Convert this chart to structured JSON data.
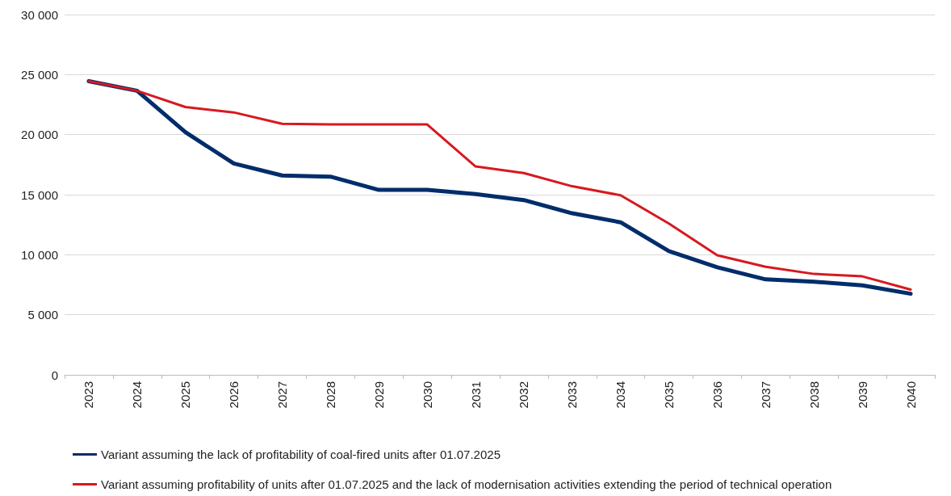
{
  "chart_data": {
    "type": "line",
    "categories": [
      "2023",
      "2024",
      "2025",
      "2026",
      "2027",
      "2028",
      "2029",
      "2030",
      "2031",
      "2032",
      "2033",
      "2034",
      "2035",
      "2036",
      "2037",
      "2038",
      "2039",
      "2040"
    ],
    "series": [
      {
        "name": "Variant assuming the lack of profitability of coal-fired units after 01.07.2025",
        "color": "#002d6a",
        "values": [
          24450,
          23650,
          20200,
          17600,
          16600,
          16500,
          15400,
          15400,
          15050,
          14550,
          13450,
          12700,
          10300,
          8950,
          7950,
          7750,
          7450,
          6750
        ]
      },
      {
        "name": "Variant assuming profitability of units after 01.07.2025 and the lack of modernisation activities extending the period of technical operation",
        "color": "#d71920",
        "values": [
          24450,
          23650,
          22300,
          21850,
          20900,
          20850,
          20850,
          20850,
          17350,
          16800,
          15700,
          14950,
          12600,
          9950,
          9000,
          8400,
          8200,
          7100
        ]
      }
    ],
    "ylim": [
      0,
      30000
    ],
    "yticks": [
      {
        "value": 0,
        "label": "0"
      },
      {
        "value": 5000,
        "label": "5 000"
      },
      {
        "value": 10000,
        "label": "10 000"
      },
      {
        "value": 15000,
        "label": "15 000"
      },
      {
        "value": 20000,
        "label": "20 000"
      },
      {
        "value": 25000,
        "label": "25 000"
      },
      {
        "value": 30000,
        "label": "30 000"
      }
    ],
    "grid": "y",
    "legend": "bottom",
    "marker": "none",
    "line_style": "solid"
  }
}
